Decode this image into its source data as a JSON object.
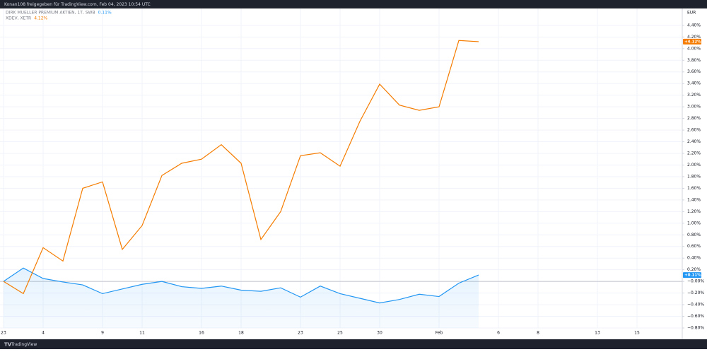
{
  "chart_data": {
    "type": "line",
    "header": "Konan108 freigegeben für TradingView.com, Feb 04, 2023 10:54 UTC",
    "footer": "TradingView",
    "y_axis_unit": "EUR",
    "categories": [
      "23",
      null,
      "4",
      null,
      null,
      "9",
      null,
      "11",
      null,
      null,
      "16",
      null,
      "18",
      null,
      null,
      "23",
      null,
      "25",
      null,
      "30",
      null,
      null,
      "Feb",
      null,
      null,
      "6",
      null,
      "8",
      null,
      null,
      "13",
      null,
      "15"
    ],
    "series": [
      {
        "name": "DIRK MUELLER PREMIUM AKTIEN, 1T, SWB",
        "color": "#2196f3",
        "area": true,
        "legend_value": "0.11%",
        "axis_label": "+0.11%",
        "values": [
          0,
          0.23,
          0.05,
          -0.01,
          -0.06,
          -0.21,
          -0.13,
          -0.05,
          0,
          -0.09,
          -0.12,
          -0.08,
          -0.15,
          -0.17,
          -0.11,
          -0.27,
          -0.08,
          -0.21,
          -0.29,
          -0.37,
          -0.31,
          -0.22,
          -0.26,
          -0.03,
          0.11,
          null,
          null,
          null,
          null,
          null,
          null,
          null,
          null
        ]
      },
      {
        "name": "XDEV, XETR",
        "color": "#f57c00",
        "area": false,
        "legend_value": "4.12%",
        "axis_label": "+4.12%",
        "values": [
          0,
          -0.21,
          0.58,
          0.35,
          1.6,
          1.71,
          0.55,
          0.96,
          1.82,
          2.03,
          2.1,
          2.35,
          2.03,
          0.72,
          1.2,
          2.16,
          2.21,
          1.98,
          2.75,
          3.39,
          3.03,
          2.94,
          3,
          4.14,
          4.12,
          null,
          null,
          null,
          null,
          null,
          null,
          null,
          null
        ]
      }
    ],
    "ylim": [
      -0.8,
      4.69
    ],
    "yticks": [
      {
        "value": 4.4,
        "label": "4.40%"
      },
      {
        "value": 4.2,
        "label": "4.20%"
      },
      {
        "value": 4.0,
        "label": "4.00%"
      },
      {
        "value": 3.8,
        "label": "3.80%"
      },
      {
        "value": 3.6,
        "label": "3.60%"
      },
      {
        "value": 3.4,
        "label": "3.40%"
      },
      {
        "value": 3.2,
        "label": "3.20%"
      },
      {
        "value": 3.0,
        "label": "3.00%"
      },
      {
        "value": 2.8,
        "label": "2.80%"
      },
      {
        "value": 2.6,
        "label": "2.60%"
      },
      {
        "value": 2.4,
        "label": "2.40%"
      },
      {
        "value": 2.2,
        "label": "2.20%"
      },
      {
        "value": 2.0,
        "label": "2.00%"
      },
      {
        "value": 1.8,
        "label": "1.80%"
      },
      {
        "value": 1.6,
        "label": "1.60%"
      },
      {
        "value": 1.4,
        "label": "1.40%"
      },
      {
        "value": 1.2,
        "label": "1.20%"
      },
      {
        "value": 1.0,
        "label": "1.00%"
      },
      {
        "value": 0.8,
        "label": "0.80%"
      },
      {
        "value": 0.6,
        "label": "0.60%"
      },
      {
        "value": 0.4,
        "label": "0.40%"
      },
      {
        "value": 0.2,
        "label": "0.20%"
      },
      {
        "value": 0,
        "label": "−0.00%"
      },
      {
        "value": -0.2,
        "label": "−0.20%"
      },
      {
        "value": -0.4,
        "label": "−0.40%"
      },
      {
        "value": -0.6,
        "label": "−0.60%"
      },
      {
        "value": -0.8,
        "label": "−0.80%"
      }
    ],
    "grid": true,
    "zero_line": true
  }
}
